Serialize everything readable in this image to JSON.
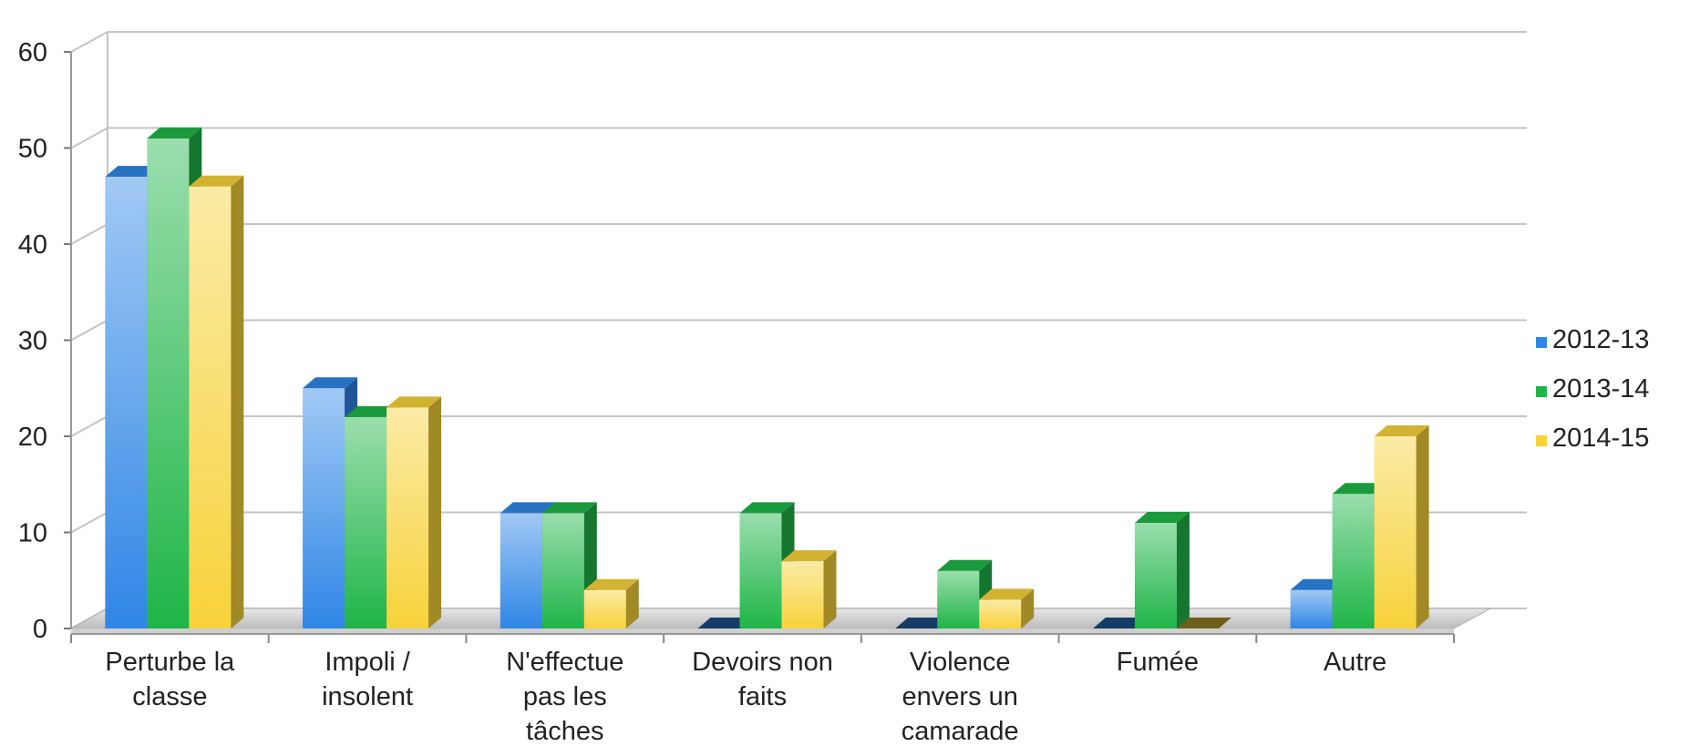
{
  "chart_data": {
    "type": "bar",
    "title": "",
    "xlabel": "",
    "ylabel": "",
    "ylim": [
      0,
      60
    ],
    "yticks": [
      0,
      10,
      20,
      30,
      40,
      50,
      60
    ],
    "grid": true,
    "legend_position": "right",
    "style": "3d-clustered-column",
    "categories": [
      [
        "Perturbe la",
        "classe"
      ],
      [
        "Impoli /",
        "insolent"
      ],
      [
        "N'effectue",
        "pas les",
        "tâches"
      ],
      [
        "Devoirs non",
        "faits"
      ],
      [
        "Violence",
        "envers un",
        "camarade"
      ],
      [
        "Fumée"
      ],
      [
        "Autre"
      ]
    ],
    "series": [
      {
        "name": "2012-13",
        "color": "#2f86e6",
        "values": [
          47,
          25,
          12,
          0,
          0,
          0,
          4
        ]
      },
      {
        "name": "2013-14",
        "color": "#1fb548",
        "values": [
          51,
          22,
          12,
          12,
          6,
          11,
          14
        ]
      },
      {
        "name": "2014-15",
        "color": "#f7d23a",
        "values": [
          46,
          23,
          4,
          7,
          3,
          0,
          20
        ]
      }
    ]
  }
}
